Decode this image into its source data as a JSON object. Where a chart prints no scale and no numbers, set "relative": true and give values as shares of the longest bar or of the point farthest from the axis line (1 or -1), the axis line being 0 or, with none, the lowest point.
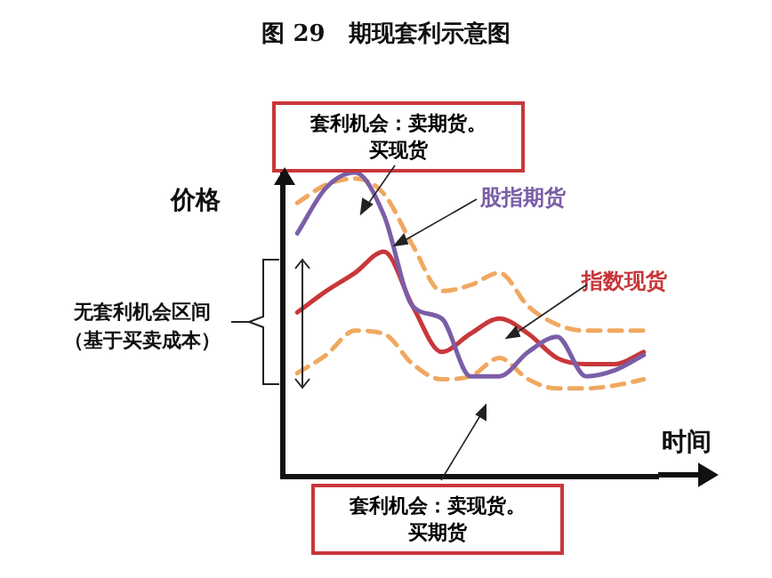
{
  "chart_data": {
    "type": "line",
    "title": "图 29　期现套利示意图",
    "xlabel": "时间",
    "ylabel": "价格",
    "relative": true,
    "grid": false,
    "legend": false,
    "marker": "none",
    "categories": [
      null,
      null,
      null,
      null,
      null,
      null,
      null,
      null,
      null,
      null,
      null,
      null,
      null
    ],
    "series": [
      {
        "name": "股指期货",
        "color": "#7b5ea7",
        "values": [
          0.8,
          0.95,
          1,
          0.86,
          0.56,
          0.52,
          0.33,
          0.33,
          0.41,
          0.46,
          0.33,
          0.35,
          0.4
        ]
      },
      {
        "name": "指数现货",
        "color": "#c8373a",
        "values": [
          0.54,
          0.61,
          0.67,
          0.74,
          0.56,
          0.41,
          0.47,
          0.52,
          0.47,
          0.39,
          0.37,
          0.37,
          0.41
        ]
      },
      {
        "color": "#f0a860",
        "line_style": "dashed",
        "values": [
          0.9,
          0.96,
          0.98,
          0.93,
          0.76,
          0.61,
          0.63,
          0.67,
          0.56,
          0.5,
          0.48,
          0.48,
          0.48
        ]
      },
      {
        "color": "#f0a860",
        "line_style": "dashed",
        "values": [
          0.34,
          0.4,
          0.48,
          0.47,
          0.37,
          0.32,
          0.33,
          0.39,
          0.32,
          0.29,
          0.29,
          0.3,
          0.32
        ]
      }
    ],
    "annotations": [
      "套利机会：卖期货。买现货",
      "套利机会：卖现货。买期货",
      "无套利机会区间（基于买卖成本）"
    ]
  }
}
